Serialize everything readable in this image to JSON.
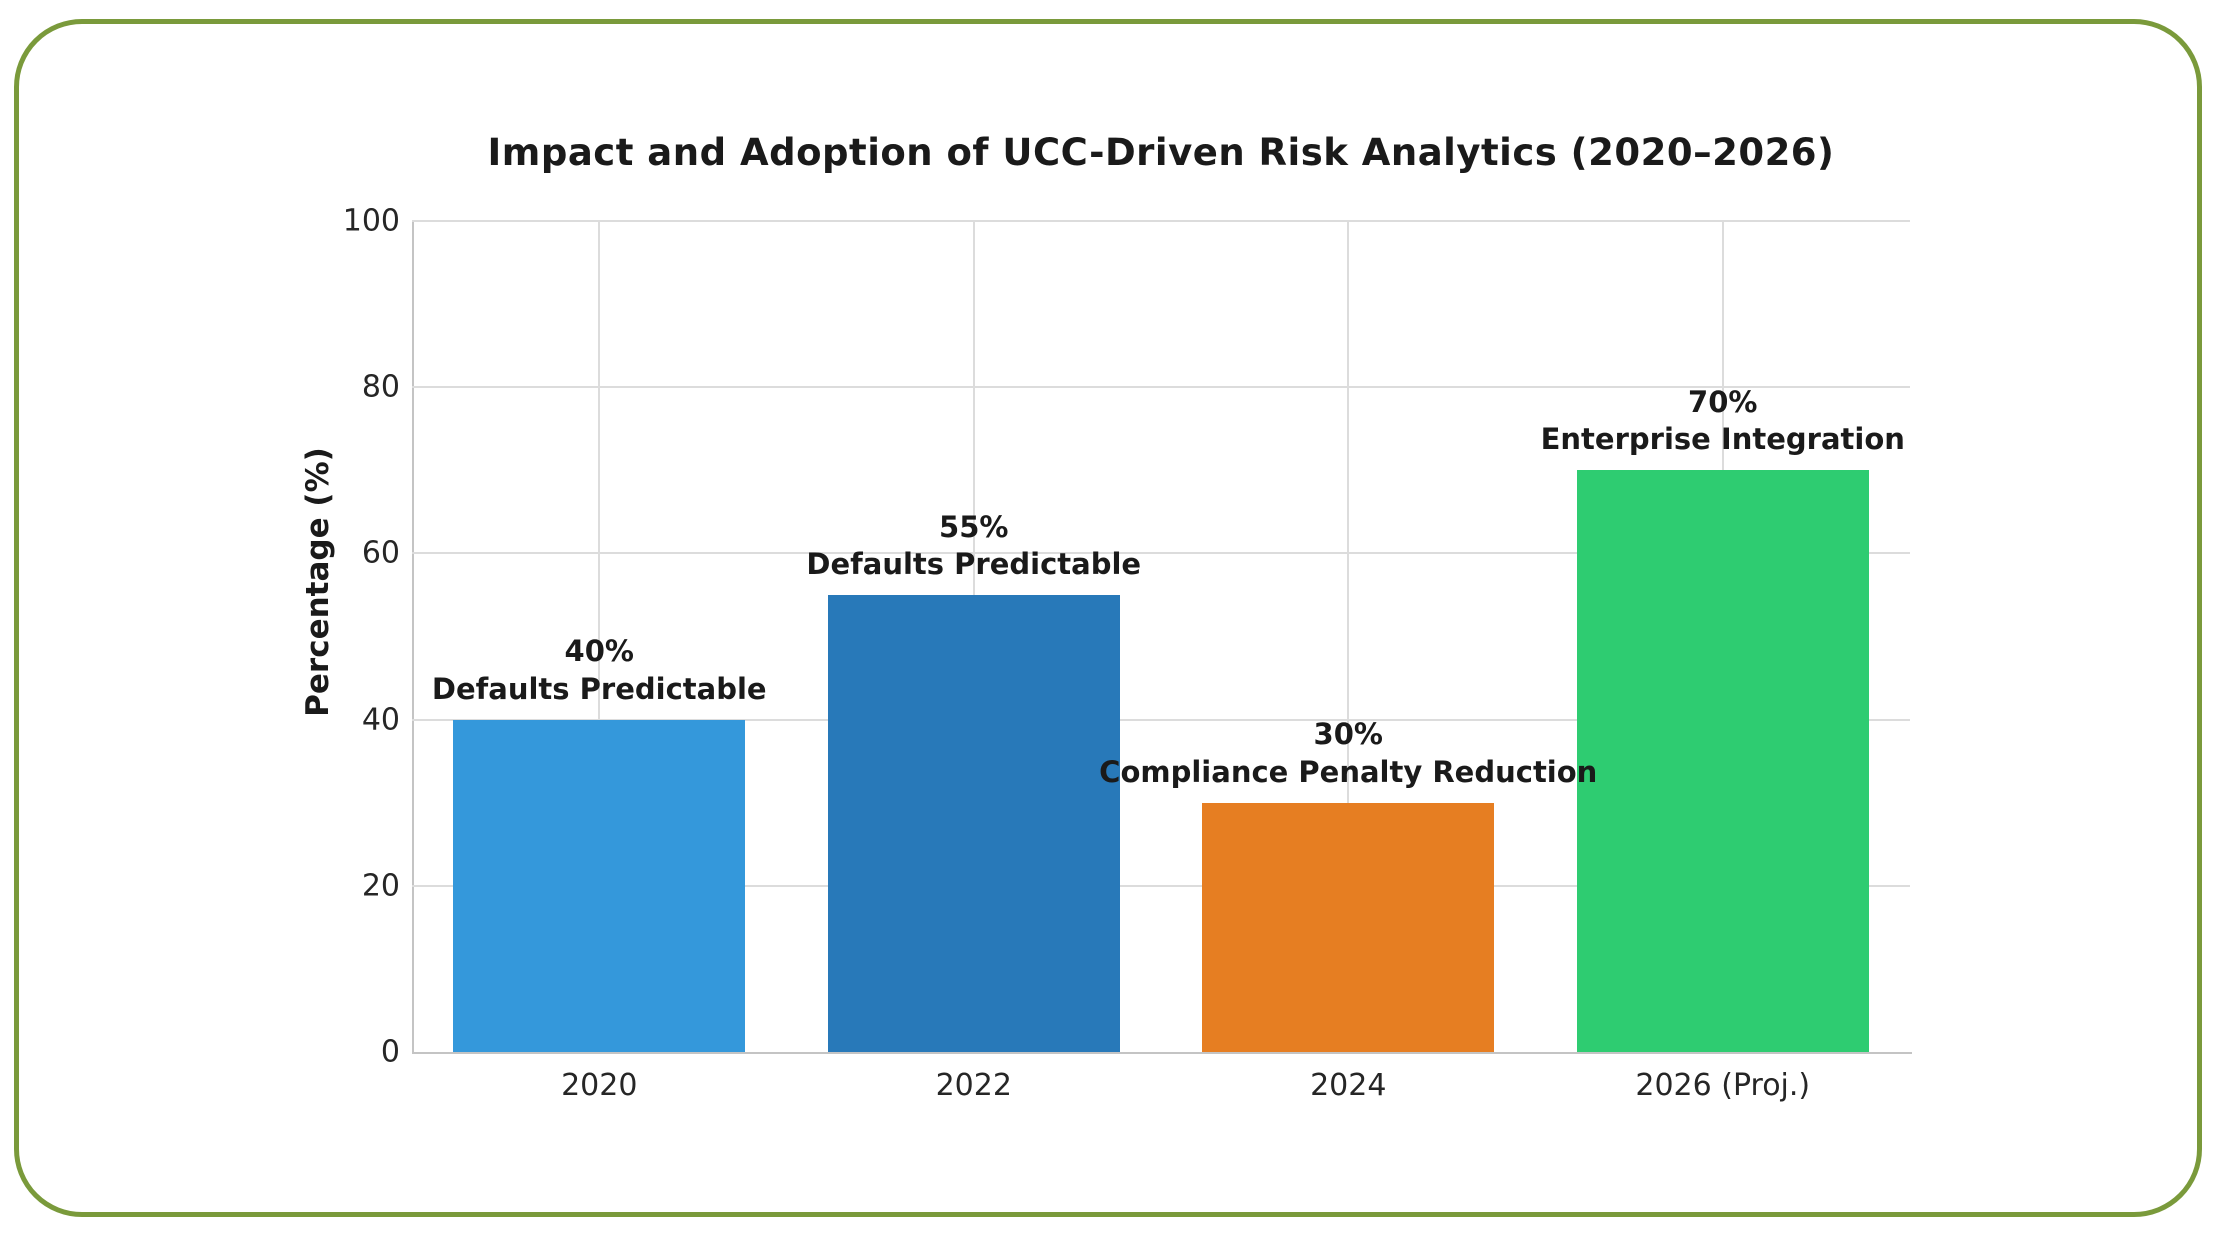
{
  "figure": {
    "border_color": "#7a9a3b",
    "background_color": "#ffffff"
  },
  "chart_data": {
    "type": "bar",
    "title": "Impact and Adoption of UCC-Driven Risk Analytics (2020–2026)",
    "xlabel": "",
    "ylabel": "Percentage (%)",
    "ylim": [
      0,
      100
    ],
    "yticks": [
      0,
      20,
      40,
      60,
      80,
      100
    ],
    "grid": true,
    "legend": "none",
    "categories": [
      "2020",
      "2022",
      "2024",
      "2026 (Proj.)"
    ],
    "values": [
      40,
      55,
      30,
      70
    ],
    "bar_labels": [
      {
        "value": "40%",
        "caption": "Defaults Predictable"
      },
      {
        "value": "55%",
        "caption": "Defaults Predictable"
      },
      {
        "value": "30%",
        "caption": "Compliance Penalty Reduction"
      },
      {
        "value": "70%",
        "caption": "Enterprise Integration"
      }
    ],
    "bar_colors": [
      "#3498db",
      "#2879b9",
      "#e67e22",
      "#2ecc71"
    ]
  }
}
